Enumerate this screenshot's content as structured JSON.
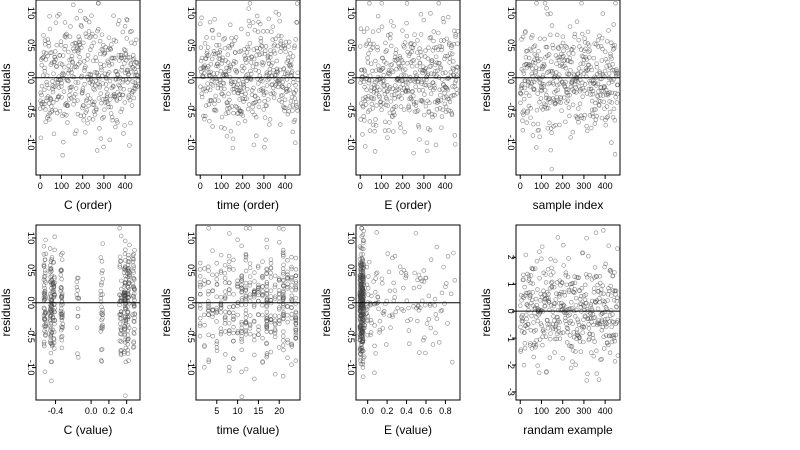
{
  "chart_data": [
    {
      "type": "scatter",
      "xlabel": "C (order)",
      "ylabel": "residuals",
      "xlim": [
        -20,
        470
      ],
      "ylim": [
        -1.5,
        1.2
      ],
      "xticks": [
        0,
        100,
        200,
        300,
        400
      ],
      "xtick_labels": [
        "0",
        "100",
        "200",
        "300",
        "400"
      ],
      "yticks": [
        -1.0,
        -0.5,
        0.0,
        0.5,
        1.0
      ],
      "ytick_labels": [
        "-1.0",
        "-0.5",
        "0.0",
        "0.5",
        "1.0"
      ],
      "hline": 0,
      "gen": {
        "n": 450,
        "x": "index",
        "seed": 11,
        "sd": 0.42,
        "xmax": 460,
        "ymin": -1.45,
        "ymax": 1.15
      }
    },
    {
      "type": "scatter",
      "xlabel": "time (order)",
      "ylabel": "residuals",
      "xlim": [
        -20,
        470
      ],
      "ylim": [
        -1.5,
        1.2
      ],
      "xticks": [
        0,
        100,
        200,
        300,
        400
      ],
      "xtick_labels": [
        "0",
        "100",
        "200",
        "300",
        "400"
      ],
      "yticks": [
        -1.0,
        -0.5,
        0.0,
        0.5,
        1.0
      ],
      "ytick_labels": [
        "-1.0",
        "-0.5",
        "0.0",
        "0.5",
        "1.0"
      ],
      "hline": 0,
      "gen": {
        "n": 450,
        "x": "index",
        "seed": 23,
        "sd": 0.42,
        "xmax": 460,
        "ymin": -1.45,
        "ymax": 1.15
      }
    },
    {
      "type": "scatter",
      "xlabel": "E (order)",
      "ylabel": "residuals",
      "xlim": [
        -20,
        470
      ],
      "ylim": [
        -1.5,
        1.2
      ],
      "xticks": [
        0,
        100,
        200,
        300,
        400
      ],
      "xtick_labels": [
        "0",
        "100",
        "200",
        "300",
        "400"
      ],
      "yticks": [
        -1.0,
        -0.5,
        0.0,
        0.5,
        1.0
      ],
      "ytick_labels": [
        "-1.0",
        "-0.5",
        "0.0",
        "0.5",
        "1.0"
      ],
      "hline": 0,
      "gen": {
        "n": 450,
        "x": "index",
        "seed": 37,
        "sd": 0.42,
        "xmax": 460,
        "ymin": -1.45,
        "ymax": 1.15
      }
    },
    {
      "type": "scatter",
      "xlabel": "sample index",
      "ylabel": "residuals",
      "xlim": [
        -20,
        470
      ],
      "ylim": [
        -1.5,
        1.2
      ],
      "xticks": [
        0,
        100,
        200,
        300,
        400
      ],
      "xtick_labels": [
        "0",
        "100",
        "200",
        "300",
        "400"
      ],
      "yticks": [
        -1.0,
        -0.5,
        0.0,
        0.5,
        1.0
      ],
      "ytick_labels": [
        "-1.0",
        "-0.5",
        "0.0",
        "0.5",
        "1.0"
      ],
      "hline": 0,
      "gen": {
        "n": 450,
        "x": "index",
        "seed": 41,
        "sd": 0.42,
        "xmax": 460,
        "ymin": -1.45,
        "ymax": 1.15
      }
    },
    {
      "type": "scatter",
      "xlabel": "C (value)",
      "ylabel": "residuals",
      "xlim": [
        -0.62,
        0.55
      ],
      "ylim": [
        -1.5,
        1.2
      ],
      "xticks": [
        -0.4,
        0.0,
        0.2,
        0.4
      ],
      "xtick_labels": [
        "-0.4",
        "0.0",
        "0.2",
        "0.4"
      ],
      "yticks": [
        -1.0,
        -0.5,
        0.0,
        0.5,
        1.0
      ],
      "ytick_labels": [
        "-1.0",
        "-0.5",
        "0.0",
        "0.5",
        "1.0"
      ],
      "hline": 0,
      "gen": {
        "n": 450,
        "x": "clusters",
        "seed": 53,
        "sd": 0.42,
        "centers": [
          -0.52,
          -0.45,
          -0.42,
          -0.33,
          -0.15,
          0.12,
          0.33,
          0.38,
          0.42,
          0.48
        ],
        "weights": [
          2,
          3,
          2,
          2,
          1,
          1,
          2,
          3,
          2,
          2
        ],
        "spread": 0.012,
        "ymin": -1.45,
        "ymax": 1.15
      }
    },
    {
      "type": "scatter",
      "xlabel": "time (value)",
      "ylabel": "residuals",
      "xlim": [
        0,
        25
      ],
      "ylim": [
        -1.5,
        1.2
      ],
      "xticks": [
        5,
        10,
        15,
        20
      ],
      "xtick_labels": [
        "5",
        "10",
        "15",
        "20"
      ],
      "yticks": [
        -1.0,
        -0.5,
        0.0,
        0.5,
        1.0
      ],
      "ytick_labels": [
        "-1.0",
        "-0.5",
        "0.0",
        "0.5",
        "1.0"
      ],
      "hline": 0,
      "gen": {
        "n": 450,
        "x": "clusters",
        "seed": 67,
        "sd": 0.42,
        "centers": [
          1,
          2,
          3,
          4,
          5,
          6,
          7,
          8,
          9,
          10,
          11,
          12,
          13,
          14,
          15,
          16,
          17,
          18,
          19,
          20,
          21,
          22,
          23,
          24
        ],
        "weights": [
          1,
          1,
          1,
          1,
          1,
          1,
          1,
          2,
          1,
          1,
          2,
          2,
          1,
          1,
          1,
          1,
          2,
          1,
          1,
          1,
          2,
          1,
          1,
          2
        ],
        "spread": 0.05,
        "ymin": -1.45,
        "ymax": 1.15
      }
    },
    {
      "type": "scatter",
      "xlabel": "E (value)",
      "ylabel": "residuals",
      "xlim": [
        -0.12,
        0.95
      ],
      "ylim": [
        -1.5,
        1.2
      ],
      "xticks": [
        0.0,
        0.2,
        0.4,
        0.6,
        0.8
      ],
      "xtick_labels": [
        "0.0",
        "0.2",
        "0.4",
        "0.6",
        "0.8"
      ],
      "yticks": [
        -1.0,
        -0.5,
        0.0,
        0.5,
        1.0
      ],
      "ytick_labels": [
        "-1.0",
        "-0.5",
        "0.0",
        "0.5",
        "1.0"
      ],
      "hline": 0,
      "gen": {
        "n": 450,
        "x": "skewed",
        "seed": 79,
        "sd": 0.42,
        "xmin": -0.08,
        "xmax": 0.9,
        "ymin": -1.45,
        "ymax": 1.15
      }
    },
    {
      "type": "scatter",
      "xlabel": "randam example",
      "ylabel": "residuals",
      "xlim": [
        -20,
        470
      ],
      "ylim": [
        -3.3,
        3.2
      ],
      "xticks": [
        0,
        100,
        200,
        300,
        400
      ],
      "xtick_labels": [
        "0",
        "100",
        "200",
        "300",
        "400"
      ],
      "yticks": [
        -3,
        -2,
        -1,
        0,
        1,
        2
      ],
      "ytick_labels": [
        "-3",
        "-2",
        "-1",
        "0",
        "1",
        "2"
      ],
      "hline": 0,
      "gen": {
        "n": 450,
        "x": "index",
        "seed": 97,
        "sd": 1.0,
        "xmax": 460,
        "ymin": -3.2,
        "ymax": 3.0
      }
    }
  ]
}
